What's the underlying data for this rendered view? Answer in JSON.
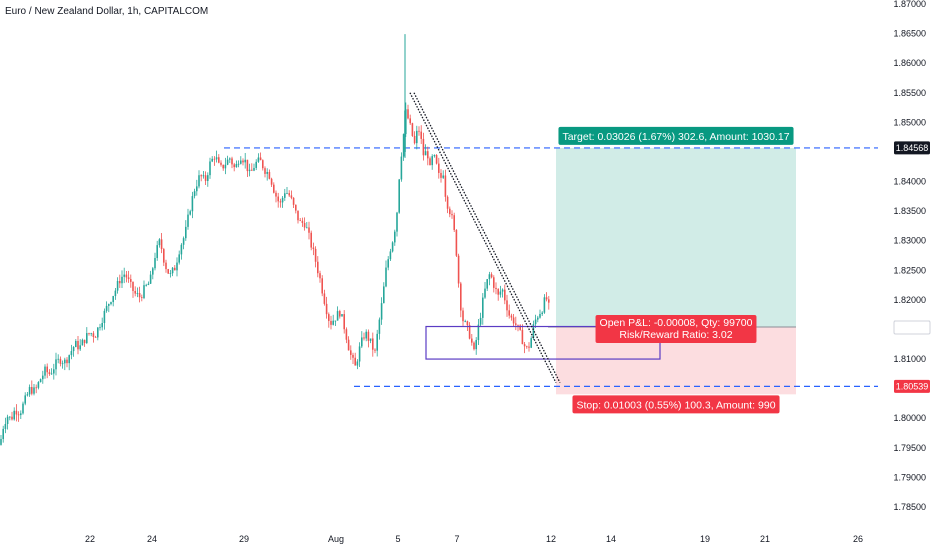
{
  "header": {
    "title": "Euro / New Zealand Dollar, 1h, CAPITALCOM"
  },
  "colors": {
    "up": "#26a69a",
    "down": "#ef5350",
    "target_zone": "#d1ece7",
    "stop_zone": "#fcdde0",
    "level_line": "#2962ff",
    "box": "#5b3cc4",
    "target_label": "#089981",
    "stop_label": "#f23645",
    "price_tag": "#131722",
    "trend_line": "#131722"
  },
  "chart_data": {
    "type": "candlestick",
    "symbol": "Euro / New Zealand Dollar",
    "interval": "1h",
    "source": "CAPITALCOM",
    "y_ticks": [
      1.87,
      1.865,
      1.86,
      1.855,
      1.85,
      1.84,
      1.835,
      1.83,
      1.825,
      1.82,
      1.81,
      1.8,
      1.795,
      1.79,
      1.785
    ],
    "y_tick_labels": [
      "1.87000",
      "1.86500",
      "1.86000",
      "1.85500",
      "1.85000",
      "1.84000",
      "1.83500",
      "1.83000",
      "1.82500",
      "1.82000",
      "1.81000",
      "1.80000",
      "1.79500",
      "1.79000",
      "1.78500"
    ],
    "ylim": [
      1.7825,
      1.8715
    ],
    "x_tick_labels": [
      "22",
      "24",
      "29",
      "Aug",
      "5",
      "7",
      "12",
      "14",
      "19",
      "21",
      "26"
    ],
    "price_path": [
      [
        0,
        1.7955
      ],
      [
        3,
        1.7985
      ],
      [
        7,
        1.8005
      ],
      [
        11,
        1.7998
      ],
      [
        15,
        1.8015
      ],
      [
        20,
        1.801
      ],
      [
        25,
        1.803
      ],
      [
        30,
        1.805
      ],
      [
        35,
        1.8045
      ],
      [
        40,
        1.8065
      ],
      [
        45,
        1.808
      ],
      [
        50,
        1.8075
      ],
      [
        55,
        1.809
      ],
      [
        60,
        1.81
      ],
      [
        65,
        1.8095
      ],
      [
        70,
        1.811
      ],
      [
        75,
        1.8125
      ],
      [
        80,
        1.812
      ],
      [
        85,
        1.8135
      ],
      [
        90,
        1.8145
      ],
      [
        95,
        1.814
      ],
      [
        100,
        1.816
      ],
      [
        105,
        1.818
      ],
      [
        110,
        1.82
      ],
      [
        115,
        1.8215
      ],
      [
        120,
        1.8235
      ],
      [
        125,
        1.8245
      ],
      [
        130,
        1.8225
      ],
      [
        135,
        1.821
      ],
      [
        140,
        1.8205
      ],
      [
        145,
        1.822
      ],
      [
        150,
        1.823
      ],
      [
        155,
        1.8275
      ],
      [
        160,
        1.83
      ],
      [
        165,
        1.826
      ],
      [
        170,
        1.824
      ],
      [
        175,
        1.8255
      ],
      [
        180,
        1.829
      ],
      [
        185,
        1.831
      ],
      [
        190,
        1.8355
      ],
      [
        195,
        1.839
      ],
      [
        200,
        1.841
      ],
      [
        205,
        1.84
      ],
      [
        210,
        1.843
      ],
      [
        215,
        1.8445
      ],
      [
        220,
        1.842
      ],
      [
        225,
        1.843
      ],
      [
        230,
        1.844
      ],
      [
        235,
        1.842
      ],
      [
        240,
        1.8445
      ],
      [
        245,
        1.8435
      ],
      [
        250,
        1.841
      ],
      [
        255,
        1.843
      ],
      [
        260,
        1.8435
      ],
      [
        265,
        1.842
      ],
      [
        270,
        1.841
      ],
      [
        275,
        1.838
      ],
      [
        280,
        1.836
      ],
      [
        285,
        1.8385
      ],
      [
        290,
        1.8375
      ],
      [
        295,
        1.835
      ],
      [
        300,
        1.833
      ],
      [
        305,
        1.833
      ],
      [
        310,
        1.83
      ],
      [
        315,
        1.827
      ],
      [
        320,
        1.8235
      ],
      [
        325,
        1.8195
      ],
      [
        330,
        1.816
      ],
      [
        335,
        1.817
      ],
      [
        340,
        1.818
      ],
      [
        345,
        1.815
      ],
      [
        350,
        1.811
      ],
      [
        355,
        1.8085
      ],
      [
        360,
        1.812
      ],
      [
        365,
        1.8145
      ],
      [
        370,
        1.813
      ],
      [
        375,
        1.811
      ],
      [
        378,
        1.815
      ],
      [
        382,
        1.8195
      ],
      [
        386,
        1.825
      ],
      [
        390,
        1.8285
      ],
      [
        394,
        1.831
      ],
      [
        397,
        1.835
      ],
      [
        400,
        1.843
      ],
      [
        403,
        1.847
      ],
      [
        406,
        1.852
      ],
      [
        409,
        1.85
      ],
      [
        412,
        1.848
      ],
      [
        415,
        1.846
      ],
      [
        418,
        1.8495
      ],
      [
        421,
        1.847
      ],
      [
        424,
        1.844
      ],
      [
        427,
        1.8455
      ],
      [
        430,
        1.842
      ],
      [
        433,
        1.8445
      ],
      [
        436,
        1.843
      ],
      [
        440,
        1.84
      ],
      [
        443,
        1.842
      ],
      [
        446,
        1.837
      ],
      [
        450,
        1.835
      ],
      [
        453,
        1.833
      ],
      [
        456,
        1.829
      ],
      [
        459,
        1.822
      ],
      [
        462,
        1.817
      ],
      [
        466,
        1.8155
      ],
      [
        470,
        1.814
      ],
      [
        474,
        1.811
      ],
      [
        478,
        1.815
      ],
      [
        482,
        1.819
      ],
      [
        486,
        1.8225
      ],
      [
        490,
        1.8245
      ],
      [
        494,
        1.8225
      ],
      [
        498,
        1.8205
      ],
      [
        502,
        1.822
      ],
      [
        506,
        1.8195
      ],
      [
        510,
        1.817
      ],
      [
        514,
        1.8165
      ],
      [
        518,
        1.815
      ],
      [
        522,
        1.8135
      ],
      [
        526,
        1.8115
      ],
      [
        530,
        1.8125
      ],
      [
        534,
        1.816
      ],
      [
        538,
        1.8175
      ],
      [
        542,
        1.8185
      ],
      [
        546,
        1.8205
      ],
      [
        550,
        1.818
      ]
    ],
    "spike_high": {
      "x": 405,
      "value": 1.8649
    },
    "levels": {
      "target": 1.84568,
      "stop": 1.80539,
      "entry": 1.81542,
      "current": 1.81534
    },
    "price_tags": [
      {
        "label": "1.84568",
        "value": 1.84568,
        "color": "#131722"
      },
      {
        "label": "1.81542",
        "value": 1.81542,
        "color": "#6a6d78"
      },
      {
        "label": "1.81534",
        "value": 1.81534,
        "color": "#ffffff",
        "text_color": "#131722"
      },
      {
        "label": "1.80539",
        "value": 1.80539,
        "color": "#f23645"
      }
    ],
    "consolidation_box": {
      "top": 1.8155,
      "bottom": 1.81
    },
    "trend_line": {
      "start": [
        410,
        1.855
      ],
      "end": [
        556,
        1.806
      ]
    },
    "position": {
      "type": "long",
      "entry": 1.81542,
      "target": 1.84568,
      "stop": 1.80539,
      "target_label": "Target: 0.03026 (1.67%) 302.6, Amount: 1030.17",
      "open_pnl_label": "Open P&L: -0.00008, Qty: 99700",
      "rr_label": "Risk/Reward Ratio: 3.02",
      "stop_label": "Stop: 0.01003 (0.55%) 100.3, Amount: 990"
    }
  }
}
